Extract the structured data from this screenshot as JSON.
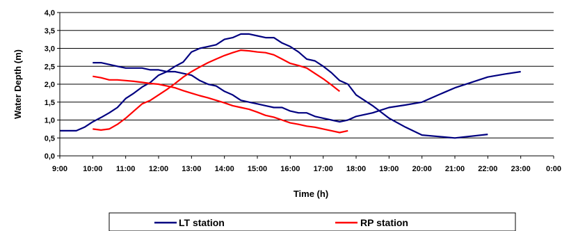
{
  "chart_data": {
    "type": "line",
    "xlabel": "Time (h)",
    "ylabel": "Water Depth (m)",
    "x_ticks": [
      "9:00",
      "10:00",
      "11:00",
      "12:00",
      "13:00",
      "14:00",
      "15:00",
      "16:00",
      "17:00",
      "18:00",
      "19:00",
      "20:00",
      "21:00",
      "22:00",
      "23:00",
      "0:00"
    ],
    "y_ticks": [
      "0,0",
      "0,5",
      "1,0",
      "1,5",
      "2,0",
      "2,5",
      "3,0",
      "3,5",
      "4,0"
    ],
    "xlim": [
      "9:00",
      "0:00"
    ],
    "ylim": [
      0,
      4
    ],
    "grid": "horizontal",
    "legend_position": "bottom",
    "colors": {
      "LT station": "#000080",
      "RP station": "#ff0000"
    },
    "series": [
      {
        "name": "LT station",
        "segments": [
          [
            [
              "9:00",
              0.7
            ],
            [
              "9:30",
              0.7
            ],
            [
              "9:45",
              0.8
            ],
            [
              "10:00",
              0.95
            ],
            [
              "10:15",
              1.07
            ],
            [
              "10:30",
              1.2
            ],
            [
              "10:45",
              1.35
            ],
            [
              "11:00",
              1.6
            ],
            [
              "11:15",
              1.75
            ],
            [
              "11:30",
              1.92
            ],
            [
              "11:45",
              2.05
            ],
            [
              "12:00",
              2.25
            ],
            [
              "12:15",
              2.35
            ],
            [
              "12:30",
              2.5
            ],
            [
              "12:45",
              2.62
            ],
            [
              "13:00",
              2.9
            ],
            [
              "13:15",
              3.0
            ],
            [
              "13:30",
              3.05
            ],
            [
              "13:45",
              3.1
            ],
            [
              "14:00",
              3.25
            ],
            [
              "14:15",
              3.3
            ],
            [
              "14:30",
              3.4
            ],
            [
              "14:45",
              3.4
            ],
            [
              "15:00",
              3.35
            ],
            [
              "15:15",
              3.3
            ],
            [
              "15:30",
              3.3
            ],
            [
              "15:45",
              3.15
            ],
            [
              "16:00",
              3.05
            ],
            [
              "16:15",
              2.9
            ],
            [
              "16:30",
              2.7
            ],
            [
              "16:45",
              2.65
            ],
            [
              "17:00",
              2.5
            ],
            [
              "17:15",
              2.32
            ],
            [
              "17:30",
              2.1
            ],
            [
              "17:45",
              2.0
            ],
            [
              "18:00",
              1.7
            ],
            [
              "18:30",
              1.4
            ],
            [
              "19:00",
              1.05
            ],
            [
              "19:30",
              0.8
            ],
            [
              "20:00",
              0.58
            ],
            [
              "21:00",
              0.5
            ],
            [
              "22:00",
              0.6
            ]
          ],
          [
            [
              "10:00",
              2.6
            ],
            [
              "10:15",
              2.6
            ],
            [
              "10:30",
              2.55
            ],
            [
              "10:45",
              2.5
            ],
            [
              "11:00",
              2.45
            ],
            [
              "11:15",
              2.45
            ],
            [
              "11:30",
              2.45
            ],
            [
              "11:45",
              2.4
            ],
            [
              "12:00",
              2.4
            ],
            [
              "12:15",
              2.35
            ],
            [
              "12:30",
              2.35
            ],
            [
              "12:45",
              2.3
            ],
            [
              "13:00",
              2.25
            ],
            [
              "13:15",
              2.1
            ],
            [
              "13:30",
              2.0
            ],
            [
              "13:45",
              1.95
            ],
            [
              "14:00",
              1.8
            ],
            [
              "14:15",
              1.7
            ],
            [
              "14:30",
              1.55
            ],
            [
              "14:45",
              1.5
            ],
            [
              "15:00",
              1.45
            ],
            [
              "15:15",
              1.4
            ],
            [
              "15:30",
              1.35
            ],
            [
              "15:45",
              1.35
            ],
            [
              "16:00",
              1.25
            ],
            [
              "16:15",
              1.2
            ],
            [
              "16:30",
              1.2
            ],
            [
              "16:45",
              1.1
            ],
            [
              "17:00",
              1.05
            ],
            [
              "17:15",
              1.0
            ],
            [
              "17:30",
              0.95
            ],
            [
              "17:45",
              1.0
            ],
            [
              "18:00",
              1.1
            ],
            [
              "18:30",
              1.2
            ],
            [
              "19:00",
              1.35
            ],
            [
              "19:30",
              1.42
            ],
            [
              "20:00",
              1.5
            ],
            [
              "20:30",
              1.7
            ],
            [
              "21:00",
              1.9
            ],
            [
              "21:30",
              2.05
            ],
            [
              "22:00",
              2.2
            ],
            [
              "22:30",
              2.28
            ],
            [
              "23:00",
              2.35
            ]
          ]
        ]
      },
      {
        "name": "RP station",
        "segments": [
          [
            [
              "10:00",
              0.75
            ],
            [
              "10:15",
              0.72
            ],
            [
              "10:30",
              0.75
            ],
            [
              "10:45",
              0.88
            ],
            [
              "11:00",
              1.05
            ],
            [
              "11:15",
              1.25
            ],
            [
              "11:30",
              1.45
            ],
            [
              "11:45",
              1.55
            ],
            [
              "12:00",
              1.7
            ],
            [
              "12:15",
              1.85
            ],
            [
              "12:30",
              2.02
            ],
            [
              "12:45",
              2.2
            ],
            [
              "13:00",
              2.35
            ],
            [
              "13:15",
              2.48
            ],
            [
              "13:30",
              2.6
            ],
            [
              "13:45",
              2.7
            ],
            [
              "14:00",
              2.8
            ],
            [
              "14:15",
              2.88
            ],
            [
              "14:30",
              2.95
            ],
            [
              "14:45",
              2.93
            ],
            [
              "15:00",
              2.9
            ],
            [
              "15:15",
              2.88
            ],
            [
              "15:30",
              2.82
            ],
            [
              "15:45",
              2.7
            ],
            [
              "16:00",
              2.58
            ],
            [
              "16:15",
              2.52
            ],
            [
              "16:30",
              2.45
            ],
            [
              "16:45",
              2.3
            ],
            [
              "17:00",
              2.15
            ],
            [
              "17:15",
              1.98
            ],
            [
              "17:30",
              1.8
            ]
          ],
          [
            [
              "10:00",
              2.22
            ],
            [
              "10:15",
              2.18
            ],
            [
              "10:30",
              2.12
            ],
            [
              "10:45",
              2.12
            ],
            [
              "11:00",
              2.1
            ],
            [
              "11:15",
              2.08
            ],
            [
              "11:30",
              2.05
            ],
            [
              "11:45",
              2.02
            ],
            [
              "12:00",
              2.0
            ],
            [
              "12:15",
              1.95
            ],
            [
              "12:30",
              1.9
            ],
            [
              "12:45",
              1.82
            ],
            [
              "13:00",
              1.75
            ],
            [
              "13:15",
              1.68
            ],
            [
              "13:30",
              1.62
            ],
            [
              "13:45",
              1.55
            ],
            [
              "14:00",
              1.48
            ],
            [
              "14:15",
              1.4
            ],
            [
              "14:30",
              1.35
            ],
            [
              "14:45",
              1.3
            ],
            [
              "15:00",
              1.22
            ],
            [
              "15:15",
              1.13
            ],
            [
              "15:30",
              1.08
            ],
            [
              "15:45",
              1.0
            ],
            [
              "16:00",
              0.92
            ],
            [
              "16:15",
              0.88
            ],
            [
              "16:30",
              0.83
            ],
            [
              "16:45",
              0.8
            ],
            [
              "17:00",
              0.75
            ],
            [
              "17:15",
              0.7
            ],
            [
              "17:30",
              0.65
            ],
            [
              "17:45",
              0.7
            ]
          ]
        ]
      }
    ]
  }
}
